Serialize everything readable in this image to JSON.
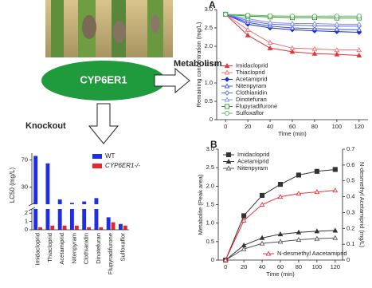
{
  "diagram": {
    "enzyme": "CYP6ER1",
    "metabolism_label": "Metabolism",
    "knockout_label": "Knockout"
  },
  "chart_data": [
    {
      "type": "line",
      "panel_label": "A",
      "x_label": "Time (min)",
      "y_label": "Remaining concentration (mg/L)",
      "x": [
        0,
        20,
        40,
        60,
        80,
        100,
        120
      ],
      "xlim": [
        -8,
        128
      ],
      "xticks": [
        0,
        20,
        40,
        60,
        80,
        100,
        120
      ],
      "ylim": [
        0,
        3
      ],
      "yticks": [
        0,
        0.5,
        {
          "value": 1,
          "label": "1.0"
        },
        1.5,
        {
          "value": 2,
          "label": "2.0"
        },
        2.5,
        {
          "value": 3,
          "label": "3.0"
        }
      ],
      "legend": "lower left",
      "series": [
        {
          "name": "Imidacloprid",
          "color": "#e8333a",
          "marker": "triangle",
          "values": [
            2.87,
            2.3,
            1.95,
            1.85,
            1.8,
            1.78,
            1.75
          ]
        },
        {
          "name": "Thiacloprid",
          "color": "#f07070",
          "marker": "triangle-open",
          "values": [
            2.87,
            2.45,
            2.1,
            1.95,
            1.93,
            1.9,
            1.9
          ]
        },
        {
          "name": "Acetamiprid",
          "color": "#1a2fd6",
          "marker": "diamond",
          "values": [
            2.87,
            2.6,
            2.5,
            2.45,
            2.42,
            2.4,
            2.38
          ]
        },
        {
          "name": "Nitenpyram",
          "color": "#3b4de0",
          "marker": "triangle-open",
          "values": [
            2.87,
            2.65,
            2.55,
            2.5,
            2.48,
            2.46,
            2.45
          ]
        },
        {
          "name": "Clothianidin",
          "color": "#5a6ae8",
          "marker": "diamond-open",
          "values": [
            2.87,
            2.7,
            2.6,
            2.58,
            2.56,
            2.55,
            2.55
          ]
        },
        {
          "name": "Dinotefuran",
          "color": "#8090f0",
          "marker": "triangle-open",
          "values": [
            2.87,
            2.75,
            2.65,
            2.62,
            2.62,
            2.6,
            2.6
          ]
        },
        {
          "name": "Flupyradifurone",
          "color": "#2a9a2a",
          "marker": "square-open",
          "values": [
            2.87,
            2.82,
            2.8,
            2.78,
            2.78,
            2.77,
            2.77
          ]
        },
        {
          "name": "Sulfoxaflor",
          "color": "#5ab85a",
          "marker": "circle-open",
          "values": [
            2.87,
            2.85,
            2.83,
            2.82,
            2.82,
            2.82,
            2.82
          ]
        }
      ]
    },
    {
      "type": "line",
      "panel_label": "B",
      "x_label": "Time (min)",
      "y_label": "Metabolite (Peak area)",
      "y2_label": "N-desmethyl Acetamiprid (mg/L)",
      "x": [
        0,
        20,
        40,
        60,
        80,
        100,
        120
      ],
      "xlim": [
        -8,
        128
      ],
      "xticks": [
        0,
        20,
        40,
        60,
        80,
        100,
        120
      ],
      "ylim": [
        0,
        3
      ],
      "yticks": [
        0,
        0.5,
        {
          "value": 1,
          "label": "1.0"
        },
        1.5,
        {
          "value": 2,
          "label": "2.0"
        },
        2.5,
        {
          "value": 3,
          "label": "3.0"
        }
      ],
      "y2lim": [
        0,
        0.7
      ],
      "y2ticks": [
        0,
        0.1,
        0.2,
        0.3,
        0.4,
        0.5,
        0.6,
        0.7
      ],
      "legend": "upper left",
      "y2_legend": "lower right",
      "series": [
        {
          "name": "Imidacloprid",
          "color": "#333333",
          "marker": "square",
          "values": [
            0,
            1.2,
            1.75,
            2.05,
            2.3,
            2.4,
            2.45
          ]
        },
        {
          "name": "Acetamiprid",
          "color": "#333333",
          "marker": "triangle",
          "values": [
            0,
            0.4,
            0.6,
            0.7,
            0.75,
            0.78,
            0.8
          ]
        },
        {
          "name": "Nitenpyram",
          "color": "#555555",
          "marker": "triangle-open",
          "values": [
            0,
            0.3,
            0.45,
            0.5,
            0.55,
            0.58,
            0.6
          ]
        },
        {
          "name": "N-desmethyl Aacetamiprid",
          "color": "#e8333a",
          "marker": "triangle-open",
          "axis": "y2",
          "values": [
            0,
            0.25,
            0.35,
            0.4,
            0.42,
            0.43,
            0.44
          ]
        }
      ]
    },
    {
      "type": "bar",
      "y_label": "LC50 (mg/L)",
      "categories": [
        "Imidacloprid",
        "Thiacloprid",
        "Acetamiprid",
        "Nitenpyram",
        "Clothianidin",
        "Dinotefuran",
        "Flupyradifurone",
        "Sulfoxaflor"
      ],
      "ylim": [
        0,
        80
      ],
      "ybreak": [
        2.5,
        5
      ],
      "yticks": [
        0,
        1,
        2,
        30,
        70
      ],
      "legend": "upper right",
      "series": [
        {
          "name": "WT",
          "color": "#1f2ee6",
          "values": [
            76,
            65,
            12,
            7,
            9,
            14,
            1.5,
            0.7
          ]
        },
        {
          "name": "CYP6ER1-/-",
          "color": "#e8262a",
          "values": [
            0.3,
            0.5,
            0.5,
            0.5,
            0.3,
            0.3,
            0.9,
            0.5
          ]
        }
      ]
    }
  ]
}
